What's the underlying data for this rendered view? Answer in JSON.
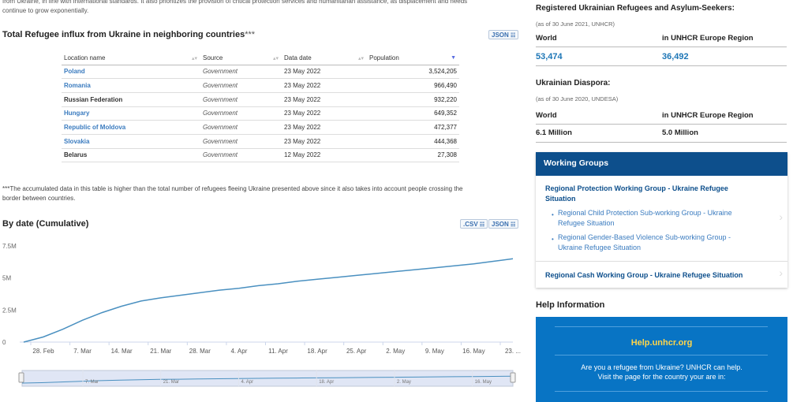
{
  "intro": {
    "line1": "from Ukraine, in line with international standards. It also prioritizes the provision of critical protection services and humanitarian assistance, as displacement and needs",
    "line2": "continue to grow exponentially."
  },
  "table_section": {
    "title": "Total Refugee influx from Ukraine in neighboring countries",
    "title_stars": "***",
    "json_label": "JSON",
    "columns": [
      "Location name",
      "Source",
      "Data date",
      "Population"
    ],
    "rows": [
      {
        "location": "Poland",
        "source": "Government",
        "date": "23 May 2022",
        "population": "3,524,205",
        "link": true
      },
      {
        "location": "Romania",
        "source": "Government",
        "date": "23 May 2022",
        "population": "966,490",
        "link": true
      },
      {
        "location": "Russian Federation",
        "source": "Government",
        "date": "23 May 2022",
        "population": "932,220",
        "link": false
      },
      {
        "location": "Hungary",
        "source": "Government",
        "date": "23 May 2022",
        "population": "649,352",
        "link": true
      },
      {
        "location": "Republic of Moldova",
        "source": "Government",
        "date": "23 May 2022",
        "population": "472,377",
        "link": true
      },
      {
        "location": "Slovakia",
        "source": "Government",
        "date": "23 May 2022",
        "population": "444,368",
        "link": true
      },
      {
        "location": "Belarus",
        "source": "Government",
        "date": "12 May 2022",
        "population": "27,308",
        "link": false
      }
    ],
    "note_line1": "***The accumulated data in this table is higher than the total number of refugees fleeing Ukraine presented above since it also takes into account people crossing the",
    "note_line2": "border between countries."
  },
  "chart_section": {
    "title": "By date (Cumulative)",
    "csv_label": ".CSV",
    "json_label": "JSON"
  },
  "chart_data": {
    "type": "line",
    "title": "By date (Cumulative)",
    "yticks": [
      "7.5M",
      "5M",
      "2.5M",
      "0"
    ],
    "ylim": [
      0,
      7500000
    ],
    "xticks": [
      "28. Feb",
      "7. Mar",
      "14. Mar",
      "21. Mar",
      "28. Mar",
      "4. Apr",
      "11. Apr",
      "18. Apr",
      "25. Apr",
      "2. May",
      "9. May",
      "16. May",
      "23. ..."
    ],
    "navigator_ticks": [
      "7. Mar",
      "21. Mar",
      "4. Apr",
      "18. Apr",
      "2. May",
      "16. May"
    ],
    "x": [
      "24 Feb",
      "27 Feb",
      "3 Mar",
      "7 Mar",
      "10 Mar",
      "14 Mar",
      "18 Mar",
      "21 Mar",
      "25 Mar",
      "28 Mar",
      "1 Apr",
      "4 Apr",
      "8 Apr",
      "11 Apr",
      "15 Apr",
      "18 Apr",
      "22 Apr",
      "25 Apr",
      "29 Apr",
      "2 May",
      "6 May",
      "9 May",
      "13 May",
      "16 May",
      "20 May",
      "24 May"
    ],
    "values": [
      0,
      400000,
      1000000,
      1700000,
      2300000,
      2800000,
      3200000,
      3450000,
      3650000,
      3850000,
      4050000,
      4200000,
      4400000,
      4550000,
      4750000,
      4900000,
      5050000,
      5200000,
      5350000,
      5500000,
      5650000,
      5800000,
      5950000,
      6100000,
      6300000,
      6500000
    ],
    "line_color": "#4a90c0",
    "grid": false
  },
  "right": {
    "reg_title": "Registered Ukrainian Refugees and Asylum-Seekers:",
    "reg_sub": "(as of 30 June 2021, UNHCR)",
    "col_world": "World",
    "col_europe": "in UNHCR Europe Region",
    "reg_world": "53,474",
    "reg_europe": "36,492",
    "dia_title": "Ukrainian Diaspora:",
    "dia_sub": "(as of 30 June 2020, UNDESA)",
    "dia_world": "6.1 Million",
    "dia_europe": "5.0 Million",
    "wg_title": "Working Groups",
    "wg_main_1": "Regional Protection Working Group - Ukraine Refugee",
    "wg_main_2": "Situation",
    "wg_sub1_1": "Regional Child Protection Sub-working Group - Ukraine",
    "wg_sub1_2": "Refugee Situation",
    "wg_sub2_1": "Regional Gender-Based Violence Sub-working Group -",
    "wg_sub2_2": "Ukraine Refugee Situation",
    "wg_cash": "Regional Cash Working Group - Ukraine Refugee Situation",
    "help_title": "Help Information",
    "help_link": "Help.unhcr.org",
    "help_text1": "Are you a refugee from Ukraine? UNHCR can help.",
    "help_text2": "Visit the page for the country your are in:"
  },
  "colors": {
    "brand_blue": "#0d4f8c",
    "link_blue": "#3a7bbf",
    "help_bg": "#0874c4",
    "help_link": "#ffd54a"
  }
}
